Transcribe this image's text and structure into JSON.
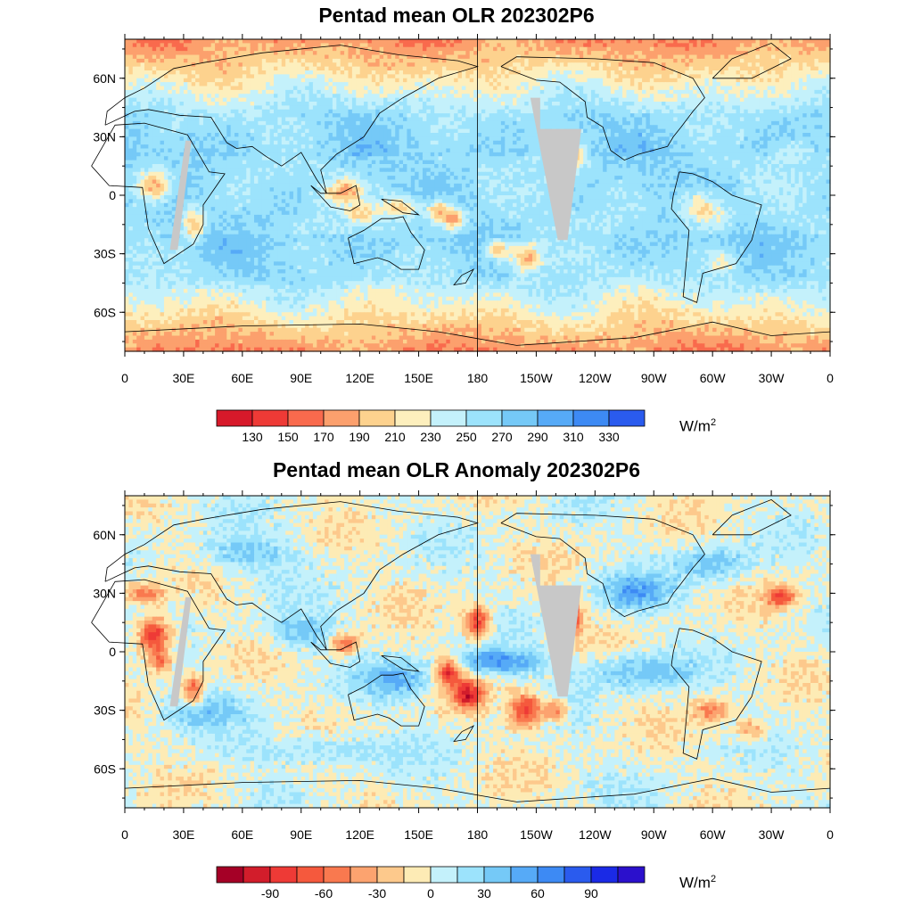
{
  "panels": [
    {
      "title": "Pentad mean OLR 202302P6",
      "kind": "olr",
      "lat_labels": [
        "60N",
        "30N",
        "0",
        "30S",
        "60S"
      ],
      "lon_labels": [
        "0",
        "30E",
        "60E",
        "90E",
        "120E",
        "150E",
        "180",
        "150W",
        "120W",
        "90W",
        "60W",
        "30W",
        "0"
      ],
      "colorbar": {
        "colors": [
          "#d7192a",
          "#ee3a36",
          "#f96a4d",
          "#fca06d",
          "#fdd28e",
          "#fdefbd",
          "#c4f1fb",
          "#9ce3fc",
          "#75c9f7",
          "#56aaf7",
          "#3d8af4",
          "#2a5bee"
        ],
        "labels": [
          "130",
          "150",
          "170",
          "190",
          "210",
          "230",
          "250",
          "270",
          "290",
          "310",
          "330"
        ]
      },
      "units": "W/m",
      "units_sup": "2"
    },
    {
      "title": "Pentad mean OLR Anomaly 202302P6",
      "kind": "anom",
      "lat_labels": [
        "60N",
        "30N",
        "0",
        "30S",
        "60S"
      ],
      "lon_labels": [
        "0",
        "30E",
        "60E",
        "90E",
        "120E",
        "150E",
        "180",
        "150W",
        "120W",
        "90W",
        "60W",
        "30W",
        "0"
      ],
      "colorbar": {
        "colors": [
          "#a50026",
          "#d21d2b",
          "#ee3a36",
          "#f5593d",
          "#f9794f",
          "#fca36f",
          "#fdc98c",
          "#fdebb5",
          "#c4f1fb",
          "#9ce3fc",
          "#75c9f7",
          "#56aaf7",
          "#3d8af4",
          "#2a5bee",
          "#1a2ae6",
          "#2b10cc"
        ],
        "labels": [
          "-90",
          "-60",
          "-30",
          "0",
          "30",
          "60",
          "90"
        ],
        "label_at": [
          2,
          4,
          6,
          8,
          10,
          12,
          14
        ]
      },
      "units": "W/m",
      "units_sup": "2"
    }
  ],
  "map_meta": {
    "lat_range": [
      -80,
      80
    ],
    "lon_range": [
      0,
      360
    ],
    "missing_color": "#c8c8c8"
  }
}
